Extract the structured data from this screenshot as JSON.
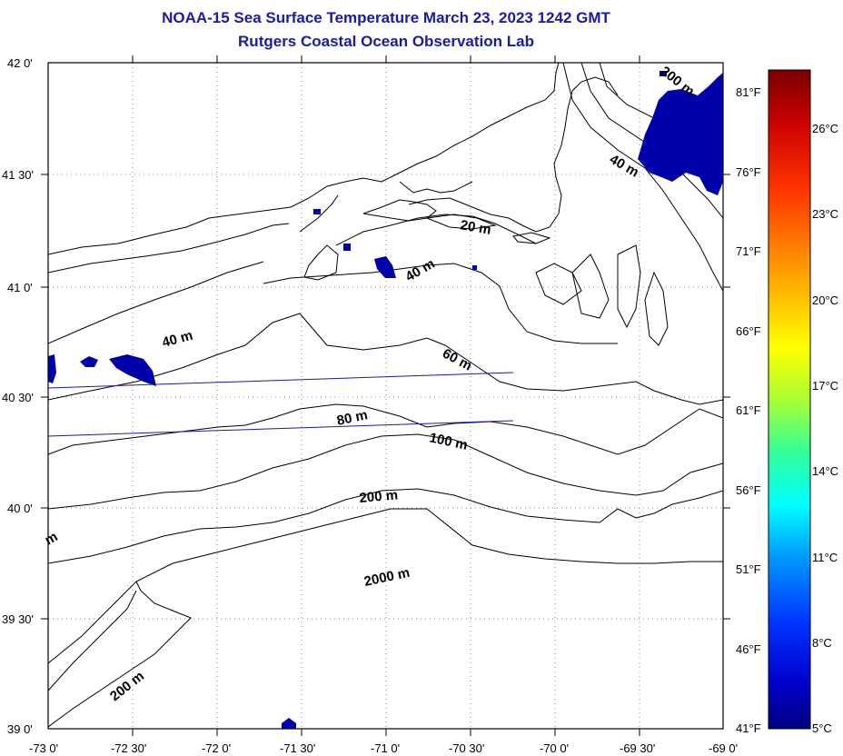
{
  "title": {
    "line1": "NOAA-15 Sea Surface Temperature March 23, 2023 1242 GMT",
    "line2": "Rutgers Coastal Ocean Observation Lab"
  },
  "map": {
    "lon_range": [
      -73.0,
      -69.0
    ],
    "lat_range": [
      39.0,
      42.0
    ],
    "lat_labels": [
      "42 0'",
      "41 30'",
      "41 0'",
      "40 30'",
      "40 0'",
      "39 30'",
      "39 0'"
    ],
    "lon_labels": [
      "-73 0'",
      "-72 30'",
      "-72 0'",
      "-71 30'",
      "-71 0'",
      "-70 30'",
      "-70 0'",
      "-69 30'",
      "-69 0'"
    ],
    "grid": "dotted",
    "contour_labels": [
      "200 m",
      "40 m",
      "20 m",
      "40 m",
      "40 m",
      "60 m",
      "80 m",
      "100 m",
      "200 m",
      "2000 m",
      "200 m",
      "m"
    ],
    "sst_patch_color": "#0000aa"
  },
  "colorbar": {
    "f_labels": [
      "81°F",
      "76°F",
      "71°F",
      "66°F",
      "61°F",
      "56°F",
      "51°F",
      "46°F",
      "41°F"
    ],
    "c_labels": [
      "26°C",
      "23°C",
      "20°C",
      "17°C",
      "14°C",
      "11°C",
      "8°C",
      "5°C"
    ],
    "colors": [
      "#7a0000",
      "#cc0000",
      "#ff3300",
      "#ff8800",
      "#ffcc00",
      "#ffff00",
      "#aaff33",
      "#33ff99",
      "#00ffff",
      "#0099ff",
      "#0033ff",
      "#0000cc",
      "#000080"
    ]
  }
}
